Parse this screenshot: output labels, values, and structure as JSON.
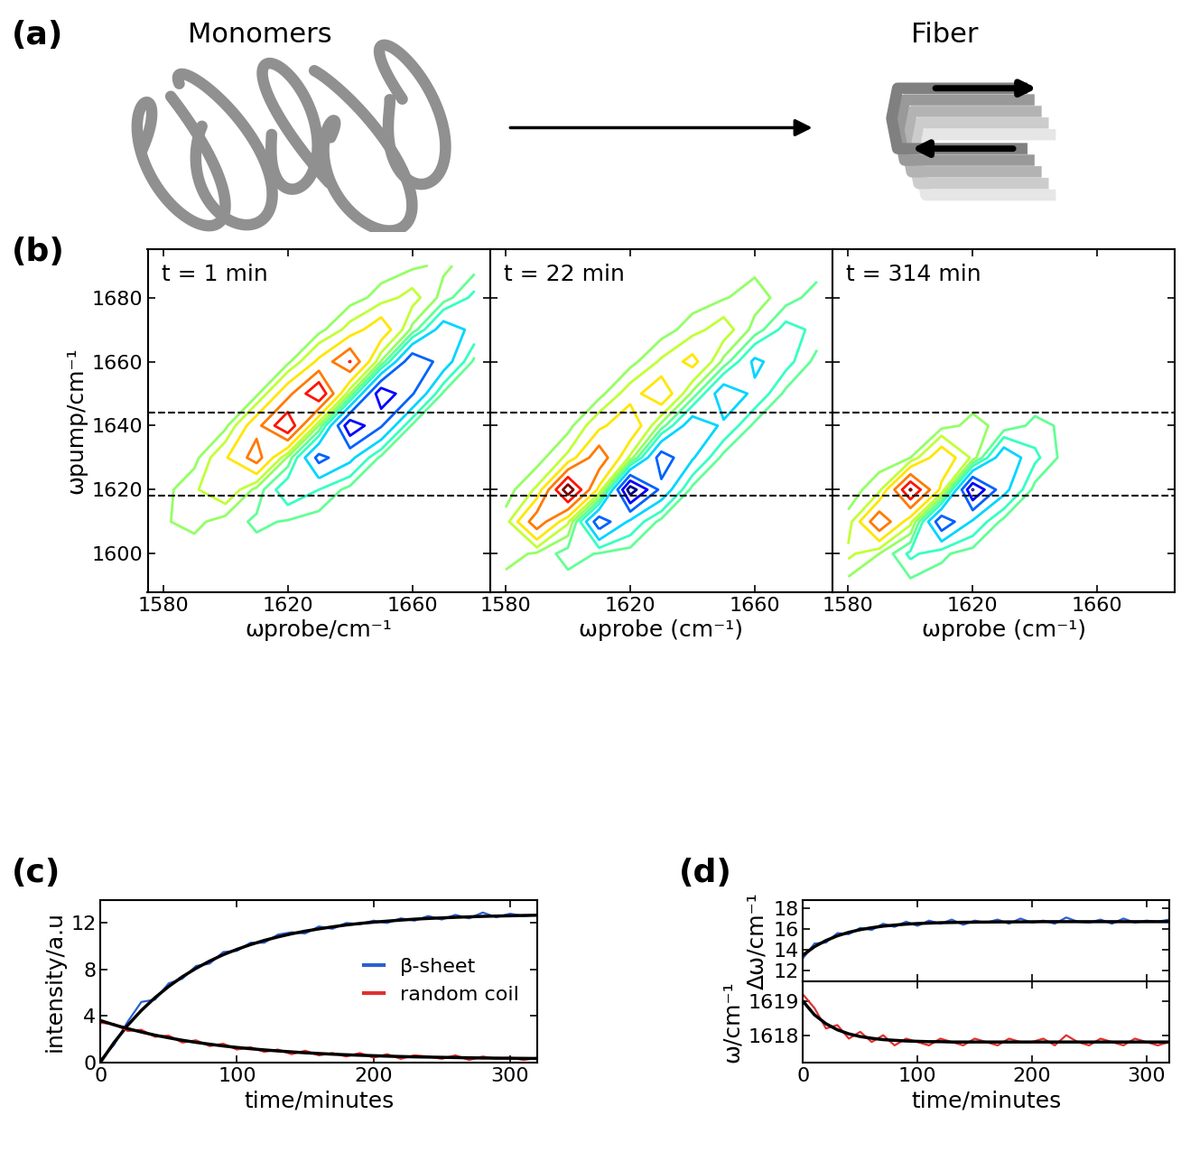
{
  "diagram": {
    "panel_label": "(a)",
    "left": "Monomers",
    "right": "Fiber"
  },
  "chart_data": [
    {
      "type": "contour",
      "panel_label": "(b)",
      "annotation": "t = 1 min",
      "x_label": "ωprobe/cm⁻¹",
      "y_label": "ωpump/cm⁻¹",
      "x": [
        1580,
        1590,
        1600,
        1610,
        1620,
        1630,
        1640,
        1650,
        1660,
        1670,
        1680
      ],
      "y": [
        1590,
        1600,
        1610,
        1620,
        1630,
        1640,
        1650,
        1660,
        1670,
        1680,
        1690
      ],
      "z": [
        [
          0,
          0,
          0,
          0,
          0,
          0,
          0,
          0,
          0,
          0,
          0
        ],
        [
          1,
          0,
          -1,
          -1,
          0,
          0,
          0,
          0,
          0,
          0,
          0
        ],
        [
          4,
          8,
          0,
          -7,
          -4,
          0,
          0,
          0,
          0,
          0,
          0
        ],
        [
          1,
          13,
          27,
          1,
          -25,
          -15,
          -1,
          0,
          0,
          0,
          0
        ],
        [
          0,
          1,
          28,
          60,
          3,
          -57,
          -35,
          -2,
          0,
          0,
          0
        ],
        [
          0,
          0,
          2,
          43,
          90,
          5,
          -86,
          -52,
          -3,
          0,
          0
        ],
        [
          0,
          0,
          0,
          2,
          43,
          90,
          5,
          -86,
          -52,
          -3,
          0
        ],
        [
          0,
          0,
          0,
          0,
          2,
          34,
          71,
          4,
          -68,
          -41,
          -2
        ],
        [
          0,
          0,
          0,
          0,
          0,
          1,
          20,
          43,
          2,
          -41,
          -25
        ],
        [
          0,
          0,
          0,
          0,
          0,
          0,
          0,
          9,
          20,
          1,
          -19
        ],
        [
          0,
          0,
          0,
          0,
          0,
          0,
          0,
          0,
          3,
          7,
          0
        ]
      ],
      "levels": [
        -90,
        -70,
        -50,
        -30,
        -15,
        -5,
        5,
        15,
        30,
        50,
        70,
        90
      ],
      "reference_lines": [
        1618,
        1644
      ],
      "xlim": [
        1575,
        1685
      ],
      "ylim": [
        1588,
        1695
      ],
      "xticks": [
        1580,
        1620,
        1660
      ],
      "yticks": [
        1600,
        1620,
        1640,
        1660,
        1680
      ]
    },
    {
      "type": "contour",
      "annotation": "t = 22 min",
      "x_label": "ωprobe (cm⁻¹)",
      "tick_labels": "x",
      "x": [
        1580,
        1590,
        1600,
        1610,
        1620,
        1630,
        1640,
        1650,
        1660,
        1670,
        1680
      ],
      "y": [
        1590,
        1600,
        1610,
        1620,
        1630,
        1640,
        1650,
        1660,
        1670,
        1680,
        1690
      ],
      "z": [
        [
          0,
          0,
          0,
          0,
          0,
          0,
          0,
          0,
          0,
          0,
          0
        ],
        [
          10,
          3,
          -10,
          -4,
          0,
          0,
          0,
          0,
          0,
          0,
          0
        ],
        [
          9,
          64,
          17,
          -64,
          -26,
          -1,
          0,
          0,
          0,
          0,
          0
        ],
        [
          0,
          17,
          104,
          25,
          -102,
          -44,
          -1,
          0,
          0,
          0,
          0
        ],
        [
          0,
          0,
          18,
          65,
          12,
          -62,
          -32,
          -1,
          0,
          0,
          0
        ],
        [
          0,
          0,
          1,
          25,
          46,
          1,
          -43,
          -27,
          -2,
          0,
          0
        ],
        [
          0,
          0,
          0,
          1,
          22,
          45,
          2,
          -43,
          -26,
          -2,
          0
        ],
        [
          0,
          0,
          0,
          0,
          1,
          17,
          36,
          2,
          -34,
          -20,
          -1
        ],
        [
          0,
          0,
          0,
          0,
          0,
          0,
          10,
          22,
          1,
          -20,
          -12
        ],
        [
          0,
          0,
          0,
          0,
          0,
          0,
          0,
          4,
          10,
          0,
          -10
        ],
        [
          0,
          0,
          0,
          0,
          0,
          0,
          0,
          0,
          2,
          4,
          0
        ]
      ],
      "levels": [
        -90,
        -70,
        -50,
        -30,
        -15,
        -5,
        5,
        15,
        30,
        50,
        70,
        90
      ],
      "reference_lines": [
        1618,
        1644
      ],
      "xlim": [
        1575,
        1685
      ],
      "ylim": [
        1588,
        1695
      ],
      "xticks": [
        1580,
        1620,
        1660
      ],
      "yticks": [
        1600,
        1620,
        1640,
        1660,
        1680
      ]
    },
    {
      "type": "contour",
      "annotation": "t = 314 min",
      "x_label": "ωprobe (cm⁻¹)",
      "tick_labels": "x",
      "x": [
        1580,
        1590,
        1600,
        1610,
        1620,
        1630,
        1640,
        1650,
        1660,
        1670,
        1680
      ],
      "y": [
        1590,
        1600,
        1610,
        1620,
        1630,
        1640,
        1650,
        1660,
        1670,
        1680,
        1690
      ],
      "z": [
        [
          0,
          -2,
          -1,
          0,
          0,
          0,
          0,
          0,
          0,
          0,
          0
        ],
        [
          18,
          5,
          -18,
          -7,
          0,
          0,
          0,
          0,
          0,
          0,
          0
        ],
        [
          8,
          68,
          19,
          -67,
          -27,
          -1,
          0,
          0,
          0,
          0,
          0
        ],
        [
          0,
          11,
          92,
          25,
          -91,
          -36,
          -1,
          0,
          0,
          0,
          0
        ],
        [
          0,
          0,
          5,
          45,
          12,
          -45,
          -18,
          0,
          0,
          0,
          0
        ],
        [
          0,
          0,
          0,
          1,
          8,
          2,
          -8,
          -3,
          0,
          0,
          0
        ],
        [
          0,
          0,
          0,
          0,
          0,
          1,
          2,
          -2,
          -2,
          0,
          0
        ],
        [
          0,
          0,
          0,
          0,
          0,
          0,
          1,
          2,
          -2,
          -1,
          0
        ],
        [
          0,
          0,
          0,
          0,
          0,
          0,
          0,
          1,
          2,
          -2,
          -1
        ],
        [
          0,
          0,
          0,
          0,
          0,
          0,
          0,
          0,
          1,
          2,
          -1
        ],
        [
          0,
          0,
          0,
          0,
          0,
          0,
          0,
          0,
          0,
          0,
          0
        ]
      ],
      "levels": [
        -90,
        -70,
        -50,
        -30,
        -15,
        -5,
        5,
        15,
        30,
        50,
        70,
        90
      ],
      "reference_lines": [
        1618,
        1644
      ],
      "xlim": [
        1575,
        1685
      ],
      "ylim": [
        1588,
        1695
      ],
      "xticks": [
        1580,
        1620,
        1660
      ],
      "yticks": [
        1600,
        1620,
        1640,
        1660,
        1680
      ]
    },
    {
      "type": "line",
      "panel_label": "(c)",
      "x_label": "time/minutes",
      "y_label": "intensity/a.u",
      "x": [
        0,
        10,
        20,
        30,
        40,
        50,
        60,
        70,
        80,
        90,
        100,
        110,
        120,
        130,
        140,
        150,
        160,
        170,
        180,
        190,
        200,
        210,
        220,
        230,
        240,
        250,
        260,
        270,
        280,
        290,
        300,
        310,
        320
      ],
      "series": [
        {
          "name": "β-sheet",
          "color": "#2f5fd0",
          "values": [
            0.2,
            1.5,
            3.5,
            5.2,
            5.4,
            6.8,
            7.2,
            8.3,
            8.5,
            9.5,
            9.6,
            10.3,
            10.3,
            11.0,
            11.2,
            11.1,
            11.7,
            11.5,
            12.0,
            11.9,
            12.2,
            12.0,
            12.4,
            12.2,
            12.6,
            12.3,
            12.7,
            12.4,
            12.9,
            12.5,
            12.8,
            12.6,
            12.7
          ],
          "fit": [
            0,
            1.7,
            3.19,
            4.47,
            5.57,
            6.53,
            7.37,
            8.09,
            8.72,
            9.27,
            9.73,
            10.14,
            10.5,
            10.8,
            11.07,
            11.3,
            11.49,
            11.67,
            11.83,
            11.96,
            12.07,
            12.16,
            12.25,
            12.33,
            12.39,
            12.44,
            12.49,
            12.53,
            12.57,
            12.6,
            12.62,
            12.65,
            12.67
          ]
        },
        {
          "name": "random coil",
          "color": "#e03030",
          "values": [
            3.4,
            3.3,
            2.7,
            2.8,
            2.2,
            2.3,
            1.7,
            1.9,
            1.4,
            1.6,
            1.1,
            1.3,
            0.9,
            1.1,
            0.7,
            1.0,
            0.6,
            0.8,
            0.5,
            0.8,
            0.4,
            0.7,
            0.3,
            0.6,
            0.5,
            0.3,
            0.6,
            0.2,
            0.5,
            0.3,
            0.4,
            0.2,
            0.4
          ],
          "fit": [
            3.6,
            3.23,
            2.9,
            2.61,
            2.34,
            2.11,
            1.9,
            1.72,
            1.56,
            1.41,
            1.28,
            1.17,
            1.07,
            0.98,
            0.9,
            0.82,
            0.76,
            0.7,
            0.65,
            0.61,
            0.57,
            0.53,
            0.5,
            0.47,
            0.45,
            0.43,
            0.41,
            0.39,
            0.37,
            0.36,
            0.35,
            0.34,
            0.33
          ]
        }
      ],
      "legend": "center right",
      "xlim": [
        0,
        320
      ],
      "ylim": [
        0,
        14
      ],
      "xticks": [
        0,
        100,
        200,
        300
      ],
      "yticks": [
        0,
        4,
        8,
        12
      ]
    },
    {
      "type": "line",
      "panel_label": "(d)",
      "y_label": "Δω/cm⁻¹",
      "tick_labels": "y",
      "x": [
        0,
        10,
        20,
        30,
        40,
        50,
        60,
        70,
        80,
        90,
        100,
        110,
        120,
        130,
        140,
        150,
        160,
        170,
        180,
        190,
        200,
        210,
        220,
        230,
        240,
        250,
        260,
        270,
        280,
        290,
        300,
        310,
        320
      ],
      "series": [
        {
          "color": "#2f5fd0",
          "values": [
            13.2,
            14.6,
            14.7,
            15.6,
            15.5,
            16.1,
            15.9,
            16.5,
            16.2,
            16.7,
            16.3,
            16.8,
            16.5,
            16.9,
            16.4,
            16.8,
            16.6,
            16.9,
            16.5,
            17.0,
            16.6,
            16.8,
            16.5,
            17.1,
            16.7,
            16.6,
            16.9,
            16.5,
            17.0,
            16.6,
            16.8,
            16.7,
            16.9
          ],
          "fit": [
            13.5,
            14.3,
            14.89,
            15.34,
            15.68,
            15.93,
            16.12,
            16.27,
            16.37,
            16.46,
            16.52,
            16.56,
            16.6,
            16.62,
            16.64,
            16.65,
            16.66,
            16.67,
            16.68,
            16.68,
            16.69,
            16.7,
            16.7,
            16.7,
            16.7,
            16.7,
            16.7,
            16.7,
            16.7,
            16.7,
            16.7,
            16.7,
            16.7
          ]
        }
      ],
      "xlim": [
        0,
        320
      ],
      "ylim": [
        11,
        18.8
      ],
      "xticks": [
        0,
        100,
        200,
        300
      ],
      "yticks": [
        12,
        14,
        16,
        18
      ]
    },
    {
      "type": "line",
      "x_label": "time/minutes",
      "y_label": "ω/cm⁻¹",
      "x": [
        0,
        10,
        20,
        30,
        40,
        50,
        60,
        70,
        80,
        90,
        100,
        110,
        120,
        130,
        140,
        150,
        160,
        170,
        180,
        190,
        200,
        210,
        220,
        230,
        240,
        250,
        260,
        270,
        280,
        290,
        300,
        310,
        320
      ],
      "series": [
        {
          "color": "#e03030",
          "values": [
            1619.2,
            1618.8,
            1618.2,
            1618.3,
            1617.9,
            1618.1,
            1617.8,
            1618.0,
            1617.7,
            1617.9,
            1617.8,
            1617.7,
            1617.9,
            1617.8,
            1617.7,
            1617.9,
            1617.8,
            1617.7,
            1617.9,
            1617.8,
            1617.8,
            1617.9,
            1617.7,
            1618.0,
            1617.8,
            1617.7,
            1617.9,
            1617.8,
            1617.7,
            1617.9,
            1617.8,
            1617.7,
            1617.8
          ],
          "fit": [
            1619.0,
            1618.6,
            1618.34,
            1618.16,
            1618.04,
            1617.96,
            1617.91,
            1617.87,
            1617.85,
            1617.83,
            1617.82,
            1617.81,
            1617.81,
            1617.8,
            1617.8,
            1617.8,
            1617.8,
            1617.8,
            1617.8,
            1617.8,
            1617.8,
            1617.8,
            1617.8,
            1617.8,
            1617.8,
            1617.8,
            1617.8,
            1617.8,
            1617.8,
            1617.8,
            1617.8,
            1617.8,
            1617.8
          ]
        }
      ],
      "xlim": [
        0,
        320
      ],
      "ylim": [
        1617.2,
        1619.6
      ],
      "xticks": [
        0,
        100,
        200,
        300
      ],
      "yticks": [
        1618,
        1619
      ]
    }
  ]
}
